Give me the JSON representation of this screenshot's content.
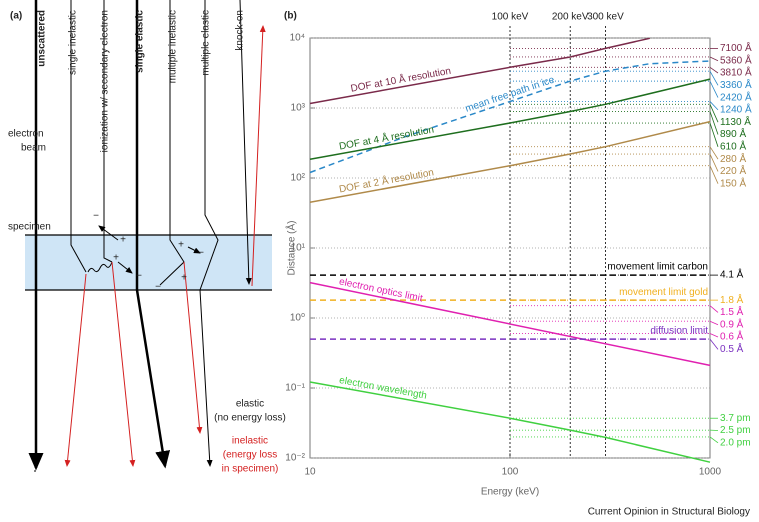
{
  "panel_a": {
    "label": "(a)",
    "columns": [
      "unscattered",
      "single inelastic",
      "ionization w/ secondary electron",
      "single elastic",
      "multiple inelastic",
      "multiple elastic",
      "knock-on"
    ],
    "electron_beam": [
      "electron",
      "beam"
    ],
    "specimen": "specimen",
    "elastic": [
      "elastic",
      "(no energy loss)"
    ],
    "inelastic": [
      "inelastic",
      "(energy loss",
      "in specimen)"
    ],
    "charges": [
      "−",
      "+",
      "+",
      "−",
      "+",
      "−",
      "−",
      "+"
    ]
  },
  "chart_data": {
    "type": "line",
    "panel_label": "(b)",
    "x_label": "Energy (keV)",
    "y_label": "Distance (Å)",
    "log_x": true,
    "log_y": true,
    "grid": true,
    "xlim": [
      10,
      1000
    ],
    "ylim": [
      0.01,
      10000
    ],
    "xticks": [
      10,
      100,
      1000
    ],
    "yticks": [
      {
        "value": 0.01,
        "label": "10⁻²"
      },
      {
        "value": 0.1,
        "label": "10⁻¹"
      },
      {
        "value": 1,
        "label": "10⁰"
      },
      {
        "value": 10,
        "label": "10¹"
      },
      {
        "value": 100,
        "label": "10²"
      },
      {
        "value": 1000,
        "label": "10³"
      },
      {
        "value": 10000,
        "label": "10⁴"
      }
    ],
    "vlines": [
      {
        "value": 100,
        "label": "100 keV"
      },
      {
        "value": 200,
        "label": "200 keV"
      },
      {
        "value": 300,
        "label": "300 keV"
      }
    ],
    "series": [
      {
        "name": "DOF at 10 Å resolution",
        "color": "#7a2a4a",
        "dashed": false,
        "x": [
          10,
          100,
          200,
          300,
          500
        ],
        "values": [
          1160,
          3810,
          5360,
          7100,
          9900
        ]
      },
      {
        "name": "mean free path in ice",
        "color": "#2a88c8",
        "dashed": true,
        "x": [
          10,
          30,
          100,
          200,
          300,
          500,
          1000
        ],
        "values": [
          120,
          390,
          1240,
          2420,
          3360,
          4300,
          4700
        ]
      },
      {
        "name": "DOF at 4 Å resolution",
        "color": "#1e6e1e",
        "dashed": false,
        "x": [
          10,
          100,
          200,
          300,
          1000
        ],
        "values": [
          185,
          610,
          890,
          1130,
          2590
        ]
      },
      {
        "name": "DOF at 2 Å resolution",
        "color": "#b08a4a",
        "dashed": false,
        "x": [
          10,
          100,
          200,
          300,
          1000
        ],
        "values": [
          45,
          150,
          220,
          280,
          640
        ]
      },
      {
        "name": "movement limit carbon",
        "color": "#000000",
        "dashed": true,
        "x": [
          10,
          1000
        ],
        "values": [
          4.1,
          4.1
        ]
      },
      {
        "name": "movement limit gold",
        "color": "#f0b020",
        "dashed": true,
        "x": [
          10,
          1000
        ],
        "values": [
          1.8,
          1.8
        ]
      },
      {
        "name": "electron optics limit",
        "color": "#e020b0",
        "dashed": false,
        "x": [
          10,
          1000
        ],
        "values": [
          3.2,
          0.21
        ]
      },
      {
        "name": "diffusion limit",
        "color": "#7a30c0",
        "dashed": true,
        "x": [
          10,
          1000
        ],
        "values": [
          0.5,
          0.5
        ]
      },
      {
        "name": "electron wavelength",
        "color": "#40d040",
        "dashed": false,
        "x": [
          10,
          100,
          200,
          300,
          1000
        ],
        "values": [
          0.122,
          0.037,
          0.025,
          0.0197,
          0.0087
        ]
      }
    ],
    "reference_values": [
      {
        "value": 7100,
        "label": "7100 Å",
        "color": "#7a2a4a"
      },
      {
        "value": 5360,
        "label": "5360 Å",
        "color": "#7a2a4a"
      },
      {
        "value": 3810,
        "label": "3810 Å",
        "color": "#7a2a4a"
      },
      {
        "value": 3360,
        "label": "3360 Å",
        "color": "#2a88c8"
      },
      {
        "value": 2420,
        "label": "2420 Å",
        "color": "#2a88c8"
      },
      {
        "value": 1240,
        "label": "1240 Å",
        "color": "#2a88c8"
      },
      {
        "value": 1130,
        "label": "1130 Å",
        "color": "#1e6e1e"
      },
      {
        "value": 890,
        "label": "890 Å",
        "color": "#1e6e1e"
      },
      {
        "value": 610,
        "label": "610 Å",
        "color": "#1e6e1e"
      },
      {
        "value": 280,
        "label": "280 Å",
        "color": "#b08a4a"
      },
      {
        "value": 220,
        "label": "220 Å",
        "color": "#b08a4a"
      },
      {
        "value": 150,
        "label": "150 Å",
        "color": "#b08a4a"
      },
      {
        "value": 4.1,
        "label": "4.1 Å",
        "color": "#000000"
      },
      {
        "value": 1.8,
        "label": "1.8 Å",
        "color": "#f0b020"
      },
      {
        "value": 1.5,
        "label": "1.5 Å",
        "color": "#e020b0"
      },
      {
        "value": 0.9,
        "label": "0.9 Å",
        "color": "#e020b0"
      },
      {
        "value": 0.6,
        "label": "0.6 Å",
        "color": "#e020b0"
      },
      {
        "value": 0.5,
        "label": "0.5 Å",
        "color": "#7a30c0"
      },
      {
        "value": 0.037,
        "label": "3.7 pm",
        "color": "#40d040"
      },
      {
        "value": 0.025,
        "label": "2.5 pm",
        "color": "#40d040"
      },
      {
        "value": 0.02,
        "label": "2.0 pm",
        "color": "#40d040"
      }
    ]
  },
  "footer": "Current Opinion in Structural Biology"
}
